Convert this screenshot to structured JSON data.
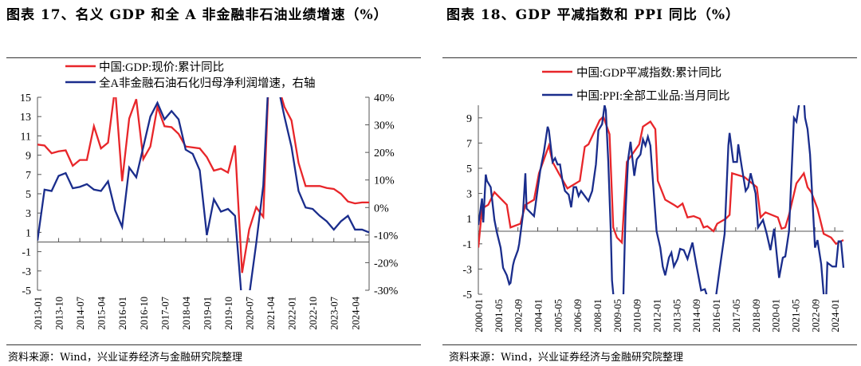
{
  "left_title": "图表 17、名义 GDP 和全 A 非金融非石油业绩增速（%）",
  "right_title": "图表 18、GDP 平减指数和 PPI 同比（%）",
  "source_left": "资料来源：Wind，兴业证券经济与金融研究院整理",
  "source_right": "资料来源：Wind，兴业证券经济与金融研究院整理",
  "chart_data": [
    {
      "type": "line",
      "title": "图表 17、名义 GDP 和全 A 非金融非石油业绩增速（%）",
      "legend": "top",
      "x": [
        "2013-01",
        "2013-04",
        "2013-07",
        "2013-10",
        "2014-01",
        "2014-04",
        "2014-07",
        "2014-10",
        "2015-01",
        "2015-04",
        "2015-07",
        "2015-10",
        "2016-01",
        "2016-04",
        "2016-07",
        "2016-10",
        "2017-01",
        "2017-04",
        "2017-07",
        "2017-10",
        "2018-01",
        "2018-04",
        "2018-07",
        "2018-10",
        "2019-01",
        "2019-04",
        "2019-07",
        "2019-10",
        "2020-01",
        "2020-04",
        "2020-07",
        "2020-10",
        "2021-01",
        "2021-04",
        "2021-07",
        "2021-10",
        "2022-01",
        "2022-04",
        "2022-07",
        "2022-10",
        "2023-01",
        "2023-04",
        "2023-07",
        "2023-10",
        "2024-01",
        "2024-04",
        "2024-07",
        "2024-10"
      ],
      "x_tick_labels": [
        "2013-01",
        "2013-10",
        "2014-07",
        "2015-04",
        "2016-01",
        "2016-10",
        "2017-07",
        "2018-04",
        "2019-01",
        "2019-10",
        "2020-07",
        "2021-04",
        "2022-01",
        "2022-10",
        "2023-07",
        "2024-04"
      ],
      "ylim": [
        -5,
        15
      ],
      "y_ticks": [
        15,
        13,
        11,
        9,
        7,
        5,
        3,
        1,
        -1,
        -3,
        -5
      ],
      "y2lim": [
        -30,
        40
      ],
      "y2_ticks": [
        "40%",
        "30%",
        "20%",
        "10%",
        "0%",
        "-10%",
        "-20%",
        "-30%"
      ],
      "series": [
        {
          "name": "中国:GDP:现价:累计同比",
          "axis": "left",
          "color": "#e8262a",
          "values": [
            10.1,
            10.0,
            9.2,
            9.4,
            9.5,
            7.9,
            8.5,
            8.5,
            12.0,
            9.7,
            10.3,
            16.0,
            6.3,
            12.8,
            14.8,
            8.6,
            9.9,
            14.0,
            12.0,
            11.9,
            11.2,
            9.9,
            9.8,
            9.7,
            8.8,
            7.4,
            7.6,
            7.2,
            10.0,
            -3.2,
            1.3,
            3.6,
            2.6,
            21.2,
            16.5,
            14.0,
            12.6,
            8.2,
            5.8,
            5.8,
            5.8,
            5.6,
            5.5,
            5.0,
            4.2,
            4.0,
            4.1,
            4.1
          ]
        },
        {
          "name": "全A非金融石油石化归母净利润增速，右轴",
          "axis": "right",
          "color": "#1a2d8c",
          "values": [
            -12,
            6.5,
            6,
            11.5,
            12.5,
            7,
            7.5,
            8.5,
            6.5,
            6,
            9.5,
            -1,
            -7,
            14.5,
            11,
            22,
            33,
            38,
            32,
            35,
            32,
            21,
            19.5,
            13.5,
            -10,
            3,
            -1.5,
            -0.5,
            -3,
            -35,
            -32,
            -13,
            8,
            60,
            45,
            33,
            22,
            6,
            0,
            -0.5,
            -3,
            -5,
            -8,
            -5,
            -3,
            -8,
            -8,
            -9
          ]
        }
      ]
    },
    {
      "type": "line",
      "title": "图表 18、GDP 平减指数和 PPI 同比（%）",
      "legend": "top",
      "x_tick_labels": [
        "2000-01",
        "2001-05",
        "2002-09",
        "2004-01",
        "2005-05",
        "2006-09",
        "2008-01",
        "2009-05",
        "2010-09",
        "2012-01",
        "2013-05",
        "2014-09",
        "2016-01",
        "2017-05",
        "2018-09",
        "2020-01",
        "2021-05",
        "2022-09",
        "2024-01"
      ],
      "ylim": [
        -5,
        10
      ],
      "y_ticks": [
        9,
        7,
        5,
        3,
        1,
        -1,
        -3,
        -5
      ],
      "series": [
        {
          "name": "中国:GDP平减指数:累计同比",
          "color": "#e8262a",
          "points": [
            [
              "2000-01",
              -1.3
            ],
            [
              "2000-04",
              1.8
            ],
            [
              "2000-09",
              2.1
            ],
            [
              "2001-02",
              3.1
            ],
            [
              "2001-12",
              2.1
            ],
            [
              "2002-03",
              0.3
            ],
            [
              "2002-11",
              0.6
            ],
            [
              "2003-03",
              2.1
            ],
            [
              "2003-10",
              2.5
            ],
            [
              "2004-02",
              4.6
            ],
            [
              "2004-10",
              6.8
            ],
            [
              "2005-01",
              5.5
            ],
            [
              "2005-06",
              4.6
            ],
            [
              "2006-01",
              3.4
            ],
            [
              "2006-11",
              4.0
            ],
            [
              "2007-03",
              6.7
            ],
            [
              "2007-06",
              6.9
            ],
            [
              "2008-03",
              8.8
            ],
            [
              "2008-06",
              9.1
            ],
            [
              "2008-11",
              7.7
            ],
            [
              "2009-02",
              0.3
            ],
            [
              "2009-05",
              -0.5
            ],
            [
              "2009-09",
              -0.9
            ],
            [
              "2010-01",
              5.5
            ],
            [
              "2010-11",
              6.9
            ],
            [
              "2011-02",
              8.3
            ],
            [
              "2011-08",
              8.7
            ],
            [
              "2011-12",
              8.1
            ],
            [
              "2012-02",
              4.0
            ],
            [
              "2012-08",
              2.5
            ],
            [
              "2013-03",
              2.1
            ],
            [
              "2013-06",
              1.9
            ],
            [
              "2013-10",
              2.2
            ],
            [
              "2014-02",
              1.1
            ],
            [
              "2014-07",
              1.2
            ],
            [
              "2014-12",
              1.0
            ],
            [
              "2015-03",
              0.3
            ],
            [
              "2015-06",
              0.4
            ],
            [
              "2015-11",
              0.0
            ],
            [
              "2016-02",
              0.6
            ],
            [
              "2016-09",
              1.0
            ],
            [
              "2016-12",
              1.3
            ],
            [
              "2017-02",
              4.6
            ],
            [
              "2017-12",
              4.3
            ],
            [
              "2018-10",
              3.5
            ],
            [
              "2019-01",
              1.1
            ],
            [
              "2019-05",
              1.5
            ],
            [
              "2020-03",
              1.1
            ],
            [
              "2020-06",
              0.2
            ],
            [
              "2020-09",
              0.3
            ],
            [
              "2020-12",
              1.3
            ],
            [
              "2021-06",
              3.8
            ],
            [
              "2021-12",
              4.6
            ],
            [
              "2022-03",
              3.5
            ],
            [
              "2022-06",
              3.1
            ],
            [
              "2022-11",
              1.8
            ],
            [
              "2023-04",
              -0.2
            ],
            [
              "2023-10",
              -0.5
            ],
            [
              "2024-02",
              -1.0
            ],
            [
              "2024-06",
              -0.8
            ],
            [
              "2024-08",
              -0.7
            ]
          ]
        },
        {
          "name": "中国:PPI:全部工业品:当月同比",
          "color": "#1a2d8c",
          "points": [
            [
              "2000-01",
              0.5
            ],
            [
              "2000-04",
              2.6
            ],
            [
              "2000-05",
              0.7
            ],
            [
              "2000-07",
              4.5
            ],
            [
              "2000-08",
              4.0
            ],
            [
              "2000-11",
              3.5
            ],
            [
              "2001-02",
              0.9
            ],
            [
              "2001-04",
              -0.1
            ],
            [
              "2001-07",
              -1.3
            ],
            [
              "2001-09",
              -2.9
            ],
            [
              "2001-12",
              -3.5
            ],
            [
              "2002-02",
              -4.2
            ],
            [
              "2002-03",
              -4.1
            ],
            [
              "2002-05",
              -2.7
            ],
            [
              "2002-06",
              -2.3
            ],
            [
              "2002-09",
              -1.5
            ],
            [
              "2002-10",
              -1.0
            ],
            [
              "2003-01",
              1.3
            ],
            [
              "2003-03",
              4.6
            ],
            [
              "2003-04",
              1.8
            ],
            [
              "2003-07",
              1.5
            ],
            [
              "2003-10",
              1.2
            ],
            [
              "2004-01",
              3.4
            ],
            [
              "2004-03",
              4.8
            ],
            [
              "2004-06",
              6.3
            ],
            [
              "2004-09",
              8.3
            ],
            [
              "2004-10",
              8.0
            ],
            [
              "2005-01",
              5.5
            ],
            [
              "2005-03",
              5.8
            ],
            [
              "2005-05",
              5.3
            ],
            [
              "2005-07",
              5.3
            ],
            [
              "2005-09",
              4.0
            ],
            [
              "2005-11",
              3.2
            ],
            [
              "2006-02",
              2.9
            ],
            [
              "2006-04",
              1.9
            ],
            [
              "2006-06",
              3.5
            ],
            [
              "2006-08",
              3.5
            ],
            [
              "2006-10",
              2.8
            ],
            [
              "2006-12",
              3.2
            ],
            [
              "2007-03",
              2.8
            ],
            [
              "2007-06",
              2.4
            ],
            [
              "2007-09",
              3.2
            ],
            [
              "2007-12",
              5.3
            ],
            [
              "2008-02",
              8.0
            ],
            [
              "2008-05",
              8.5
            ],
            [
              "2008-07",
              10.0
            ],
            [
              "2008-08",
              9.6
            ],
            [
              "2008-10",
              5.5
            ],
            [
              "2008-12",
              0.0
            ],
            [
              "2009-01",
              -3.9
            ],
            [
              "2009-03",
              -6.0
            ],
            [
              "2009-07",
              -8.2
            ],
            [
              "2009-10",
              -5.8
            ],
            [
              "2009-12",
              1.7
            ],
            [
              "2010-02",
              5.7
            ],
            [
              "2010-04",
              7.1
            ],
            [
              "2010-07",
              4.4
            ],
            [
              "2010-09",
              5.7
            ],
            [
              "2010-12",
              6.1
            ],
            [
              "2011-02",
              7.3
            ],
            [
              "2011-04",
              6.8
            ],
            [
              "2011-06",
              7.5
            ],
            [
              "2011-08",
              6.8
            ],
            [
              "2011-11",
              2.7
            ],
            [
              "2012-01",
              0.0
            ],
            [
              "2012-04",
              -1.3
            ],
            [
              "2012-06",
              -2.8
            ],
            [
              "2012-08",
              -3.5
            ],
            [
              "2012-11",
              -2.1
            ],
            [
              "2013-01",
              -1.7
            ],
            [
              "2013-03",
              -2.8
            ],
            [
              "2013-06",
              -2.2
            ],
            [
              "2013-08",
              -1.4
            ],
            [
              "2013-11",
              -1.5
            ],
            [
              "2014-02",
              -2.2
            ],
            [
              "2014-06",
              -0.9
            ],
            [
              "2014-09",
              -2.6
            ],
            [
              "2015-01",
              -4.7
            ],
            [
              "2015-04",
              -4.6
            ],
            [
              "2015-06",
              -5.2
            ],
            [
              "2015-12",
              -5.9
            ],
            [
              "2016-04",
              -3.0
            ],
            [
              "2016-08",
              -0.2
            ],
            [
              "2016-11",
              6.8
            ],
            [
              "2016-12",
              7.8
            ],
            [
              "2017-03",
              5.5
            ],
            [
              "2017-06",
              5.5
            ],
            [
              "2017-07",
              6.9
            ],
            [
              "2017-10",
              5.0
            ],
            [
              "2018-01",
              3.2
            ],
            [
              "2018-03",
              3.5
            ],
            [
              "2018-05",
              4.6
            ],
            [
              "2018-09",
              3.0
            ],
            [
              "2018-11",
              0.3
            ],
            [
              "2019-03",
              0.9
            ],
            [
              "2019-06",
              -0.2
            ],
            [
              "2019-09",
              -1.5
            ],
            [
              "2019-12",
              0.2
            ],
            [
              "2020-04",
              -3.7
            ],
            [
              "2020-07",
              -2.1
            ],
            [
              "2020-09",
              -2.0
            ],
            [
              "2020-12",
              0.0
            ],
            [
              "2021-04",
              9.0
            ],
            [
              "2021-06",
              8.7
            ],
            [
              "2021-08",
              10.0
            ],
            [
              "2021-10",
              13.5
            ],
            [
              "2022-01",
              9.0
            ],
            [
              "2022-03",
              8.1
            ],
            [
              "2022-05",
              6.1
            ],
            [
              "2022-07",
              2.4
            ],
            [
              "2022-09",
              -1.3
            ],
            [
              "2022-11",
              -0.7
            ],
            [
              "2023-02",
              -2.6
            ],
            [
              "2023-04",
              -5.0
            ],
            [
              "2023-06",
              -5.4
            ],
            [
              "2023-07",
              -2.5
            ],
            [
              "2023-11",
              -2.8
            ],
            [
              "2024-02",
              -2.8
            ],
            [
              "2024-04",
              -0.8
            ],
            [
              "2024-06",
              -0.8
            ],
            [
              "2024-08",
              -2.9
            ]
          ]
        }
      ]
    }
  ]
}
